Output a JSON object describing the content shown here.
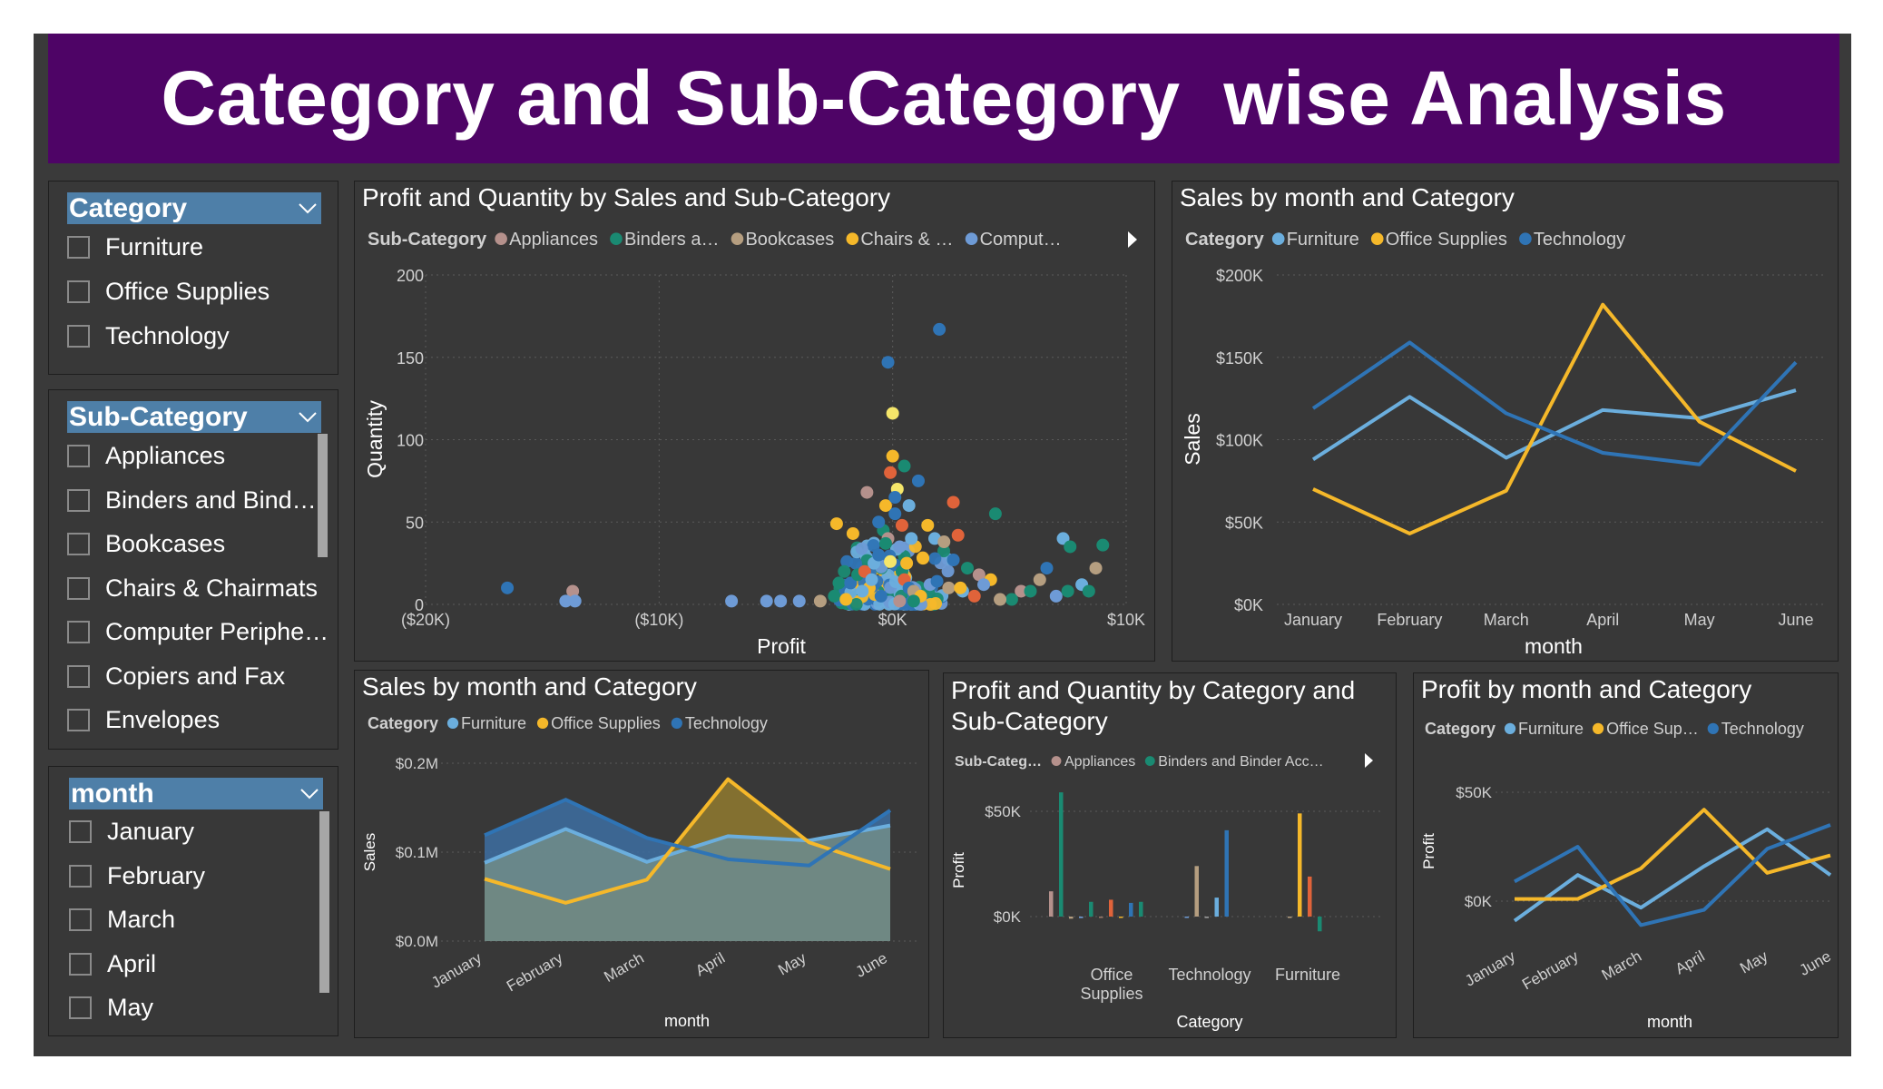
{
  "page": {
    "title": "Category and Sub-Category  wise Analysis"
  },
  "colors": {
    "furniture": "#6baedd",
    "office_supplies": "#f5b82a",
    "technology": "#2f74b5",
    "appliances": "#b5918c",
    "binders": "#1a8a72",
    "bookcases": "#b59e80",
    "chairs": "#f5b82a",
    "computers": "#6e9bd6",
    "banner": "#4e0466",
    "background": "#3a3a3a"
  },
  "slicers": {
    "category": {
      "title": "Category",
      "items": [
        "Furniture",
        "Office Supplies",
        "Technology"
      ]
    },
    "sub_category": {
      "title": "Sub-Category",
      "items": [
        "Appliances",
        "Binders and Bind…",
        "Bookcases",
        "Chairs & Chairmats",
        "Computer Periphe…",
        "Copiers and Fax",
        "Envelopes"
      ]
    },
    "month": {
      "title": "month",
      "items": [
        "January",
        "February",
        "March",
        "April",
        "May"
      ]
    }
  },
  "chart_data": [
    {
      "id": "scatter",
      "type": "scatter",
      "title": "Profit and Quantity by Sales and Sub-Category",
      "legend_title": "Sub-Category",
      "legend": [
        "Appliances",
        "Binders a…",
        "Bookcases",
        "Chairs & …",
        "Comput…"
      ],
      "xlabel": "Profit",
      "ylabel": "Quantity",
      "xlim": [
        -20000,
        10000
      ],
      "ylim": [
        0,
        200
      ],
      "x_ticks": [
        "($20K)",
        "($10K)",
        "$0K",
        "$10K"
      ],
      "y_ticks": [
        "0",
        "50",
        "100",
        "150",
        "200"
      ],
      "points": [
        [
          -16500,
          10,
          "#2f74b5"
        ],
        [
          -13700,
          8,
          "#b5918c"
        ],
        [
          -14000,
          2,
          "#6e9bd6"
        ],
        [
          -13600,
          2,
          "#6e9bd6"
        ],
        [
          -6900,
          2,
          "#6e9bd6"
        ],
        [
          -5400,
          2,
          "#6e9bd6"
        ],
        [
          -4800,
          2,
          "#6e9bd6"
        ],
        [
          -4000,
          2,
          "#6e9bd6"
        ],
        [
          -3100,
          2,
          "#b59e80"
        ],
        [
          -2500,
          5,
          "#1a8a72"
        ],
        [
          -2300,
          13,
          "#1a8a72"
        ],
        [
          -2000,
          3,
          "#f5b82a"
        ],
        [
          -1800,
          13,
          "#2f74b5"
        ],
        [
          -1500,
          18,
          "#1a8a72"
        ],
        [
          -1200,
          20,
          "#e0633a"
        ],
        [
          -1000,
          10,
          "#f5b82a"
        ],
        [
          -800,
          25,
          "#6baedd"
        ],
        [
          -600,
          30,
          "#2f74b5"
        ],
        [
          -400,
          45,
          "#1a8a72"
        ],
        [
          -300,
          60,
          "#f5b82a"
        ],
        [
          -200,
          40,
          "#b5918c"
        ],
        [
          -100,
          80,
          "#e0633a"
        ],
        [
          0,
          90,
          "#f5b82a"
        ],
        [
          100,
          55,
          "#2f74b5"
        ],
        [
          200,
          70,
          "#f5e66a"
        ],
        [
          300,
          35,
          "#6e9bd6"
        ],
        [
          400,
          20,
          "#1a8a72"
        ],
        [
          500,
          15,
          "#e0633a"
        ],
        [
          600,
          25,
          "#f5b82a"
        ],
        [
          700,
          10,
          "#2f74b5"
        ],
        [
          800,
          40,
          "#6baedd"
        ],
        [
          900,
          8,
          "#b59e80"
        ],
        [
          -1100,
          68,
          "#b5918c"
        ],
        [
          -2400,
          49,
          "#f5b82a"
        ],
        [
          -1700,
          43,
          "#f5b82a"
        ],
        [
          -200,
          147,
          "#2f74b5"
        ],
        [
          0,
          116,
          "#f5e66a"
        ],
        [
          2000,
          167,
          "#2f74b5"
        ],
        [
          500,
          84,
          "#1a8a72"
        ],
        [
          2600,
          62,
          "#e0633a"
        ],
        [
          1100,
          75,
          "#2f74b5"
        ],
        [
          1500,
          48,
          "#f5b82a"
        ],
        [
          2800,
          42,
          "#e0633a"
        ],
        [
          4400,
          55,
          "#1a8a72"
        ],
        [
          1800,
          40,
          "#6baedd"
        ],
        [
          2200,
          38,
          "#b59e80"
        ],
        [
          2600,
          27,
          "#2f74b5"
        ],
        [
          3200,
          22,
          "#1a8a72"
        ],
        [
          3700,
          18,
          "#b5918c"
        ],
        [
          4200,
          15,
          "#f5b82a"
        ],
        [
          3000,
          8,
          "#6baedd"
        ],
        [
          3500,
          5,
          "#e0633a"
        ],
        [
          2400,
          10,
          "#b59e80"
        ],
        [
          1600,
          12,
          "#6e9bd6"
        ],
        [
          1200,
          5,
          "#f5b82a"
        ],
        [
          5500,
          8,
          "#b5918c"
        ],
        [
          5900,
          8,
          "#1a8a72"
        ],
        [
          6300,
          15,
          "#b59e80"
        ],
        [
          6600,
          22,
          "#2f74b5"
        ],
        [
          7300,
          40,
          "#6baedd"
        ],
        [
          7600,
          35,
          "#1a8a72"
        ],
        [
          7000,
          5,
          "#6e9bd6"
        ],
        [
          7500,
          8,
          "#1a8a72"
        ],
        [
          8100,
          12,
          "#6baedd"
        ],
        [
          8700,
          22,
          "#b59e80"
        ],
        [
          9000,
          36,
          "#1a8a72"
        ],
        [
          8400,
          8,
          "#1a8a72"
        ],
        [
          5100,
          3,
          "#1a8a72"
        ],
        [
          4600,
          3,
          "#b59e80"
        ],
        [
          3900,
          12,
          "#6e9bd6"
        ],
        [
          2900,
          10,
          "#f5b82a"
        ],
        [
          1900,
          14,
          "#2f74b5"
        ],
        [
          -900,
          15,
          "#6baedd"
        ],
        [
          -500,
          5,
          "#2f74b5"
        ],
        [
          300,
          2,
          "#b5918c"
        ],
        [
          900,
          2,
          "#1a8a72"
        ],
        [
          -1300,
          8,
          "#6baedd"
        ],
        [
          1300,
          28,
          "#f5b82a"
        ],
        [
          700,
          60,
          "#6baedd"
        ],
        [
          -600,
          50,
          "#2f74b5"
        ],
        [
          100,
          65,
          "#2f74b5"
        ],
        [
          -300,
          37,
          "#1a8a72"
        ],
        [
          400,
          48,
          "#e0633a"
        ],
        [
          -100,
          26,
          "#f5e66a"
        ]
      ]
    },
    {
      "id": "line_top",
      "type": "line",
      "title": "Sales by month and Category",
      "legend_title": "Category",
      "categories": [
        "January",
        "February",
        "March",
        "April",
        "May",
        "June"
      ],
      "xlabel": "month",
      "ylabel": "Sales",
      "ylim": [
        0,
        200000
      ],
      "y_ticks": [
        "$0K",
        "$50K",
        "$100K",
        "$150K",
        "$200K"
      ],
      "series": [
        {
          "name": "Furniture",
          "color": "#6baedd",
          "values": [
            88000,
            126000,
            89000,
            118000,
            113000,
            130000
          ]
        },
        {
          "name": "Office Supplies",
          "color": "#f5b82a",
          "values": [
            70000,
            43000,
            69000,
            182000,
            111000,
            81000
          ]
        },
        {
          "name": "Technology",
          "color": "#2f74b5",
          "values": [
            119000,
            159000,
            116000,
            92000,
            85000,
            147000
          ]
        }
      ]
    },
    {
      "id": "area",
      "type": "area",
      "title": "Sales by month and Category",
      "legend_title": "Category",
      "categories": [
        "January",
        "February",
        "March",
        "April",
        "May",
        "June"
      ],
      "xlabel": "month",
      "ylabel": "Sales",
      "ylim": [
        0,
        200000
      ],
      "y_ticks": [
        "$0.0M",
        "$0.1M",
        "$0.2M"
      ],
      "series": [
        {
          "name": "Furniture",
          "color": "#6baedd",
          "values": [
            88000,
            126000,
            89000,
            118000,
            113000,
            130000
          ]
        },
        {
          "name": "Office Supplies",
          "color": "#f5b82a",
          "values": [
            70000,
            43000,
            69000,
            182000,
            111000,
            81000
          ]
        },
        {
          "name": "Technology",
          "color": "#2f74b5",
          "values": [
            119000,
            159000,
            116000,
            92000,
            85000,
            147000
          ]
        }
      ]
    },
    {
      "id": "bar",
      "type": "bar",
      "title_lines": [
        "Profit and Quantity by Category and",
        "Sub-Category"
      ],
      "legend_title": "Sub-Categ…",
      "legend": [
        "Appliances",
        "Binders and Binder Acc…"
      ],
      "categories": [
        [
          "Office",
          "Supplies"
        ],
        [
          "Technology"
        ],
        [
          "Furniture"
        ]
      ],
      "xlabel": "Category",
      "ylabel": "Profit",
      "ylim": [
        -10000,
        65000
      ],
      "y_ticks": [
        "$0K",
        "$50K"
      ],
      "groups": [
        {
          "bars": [
            [
              12000,
              "#b5918c"
            ],
            [
              59000,
              "#1a8a72"
            ],
            [
              -1000,
              "#b59e80"
            ],
            [
              -700,
              "#6e9bd6"
            ],
            [
              7000,
              "#1a8a72"
            ],
            [
              -400,
              "#9a7a6a"
            ],
            [
              8000,
              "#e0633a"
            ],
            [
              -600,
              "#f5b82a"
            ],
            [
              6500,
              "#2f74b5"
            ],
            [
              7000,
              "#1a8a72"
            ]
          ]
        },
        {
          "bars": [
            [
              -600,
              "#6e9bd6"
            ],
            [
              24000,
              "#b59e80"
            ],
            [
              -700,
              "#9a9a9a"
            ],
            [
              9000,
              "#6baedd"
            ],
            [
              41000,
              "#2f74b5"
            ]
          ]
        },
        {
          "bars": [
            [
              -600,
              "#b59e80"
            ],
            [
              49000,
              "#f5b82a"
            ],
            [
              19000,
              "#e0633a"
            ],
            [
              -7000,
              "#1a8a72"
            ]
          ]
        }
      ]
    },
    {
      "id": "profit_line",
      "type": "line",
      "title": "Profit by month and Category",
      "legend_title": "Category",
      "legend": [
        "Furniture",
        "Office Sup…",
        "Technology"
      ],
      "categories": [
        "January",
        "February",
        "March",
        "April",
        "May",
        "June"
      ],
      "xlabel": "month",
      "ylabel": "Profit",
      "ylim": [
        -15000,
        60000
      ],
      "y_ticks": [
        "$0K",
        "$50K"
      ],
      "series": [
        {
          "name": "Furniture",
          "color": "#6baedd",
          "values": [
            -9000,
            12000,
            -3000,
            16000,
            33000,
            12000
          ]
        },
        {
          "name": "Office Supplies",
          "color": "#f5b82a",
          "values": [
            1000,
            1000,
            15000,
            42000,
            13000,
            21000
          ]
        },
        {
          "name": "Technology",
          "color": "#2f74b5",
          "values": [
            9000,
            25000,
            -11000,
            -4000,
            24000,
            35000
          ]
        }
      ]
    }
  ]
}
